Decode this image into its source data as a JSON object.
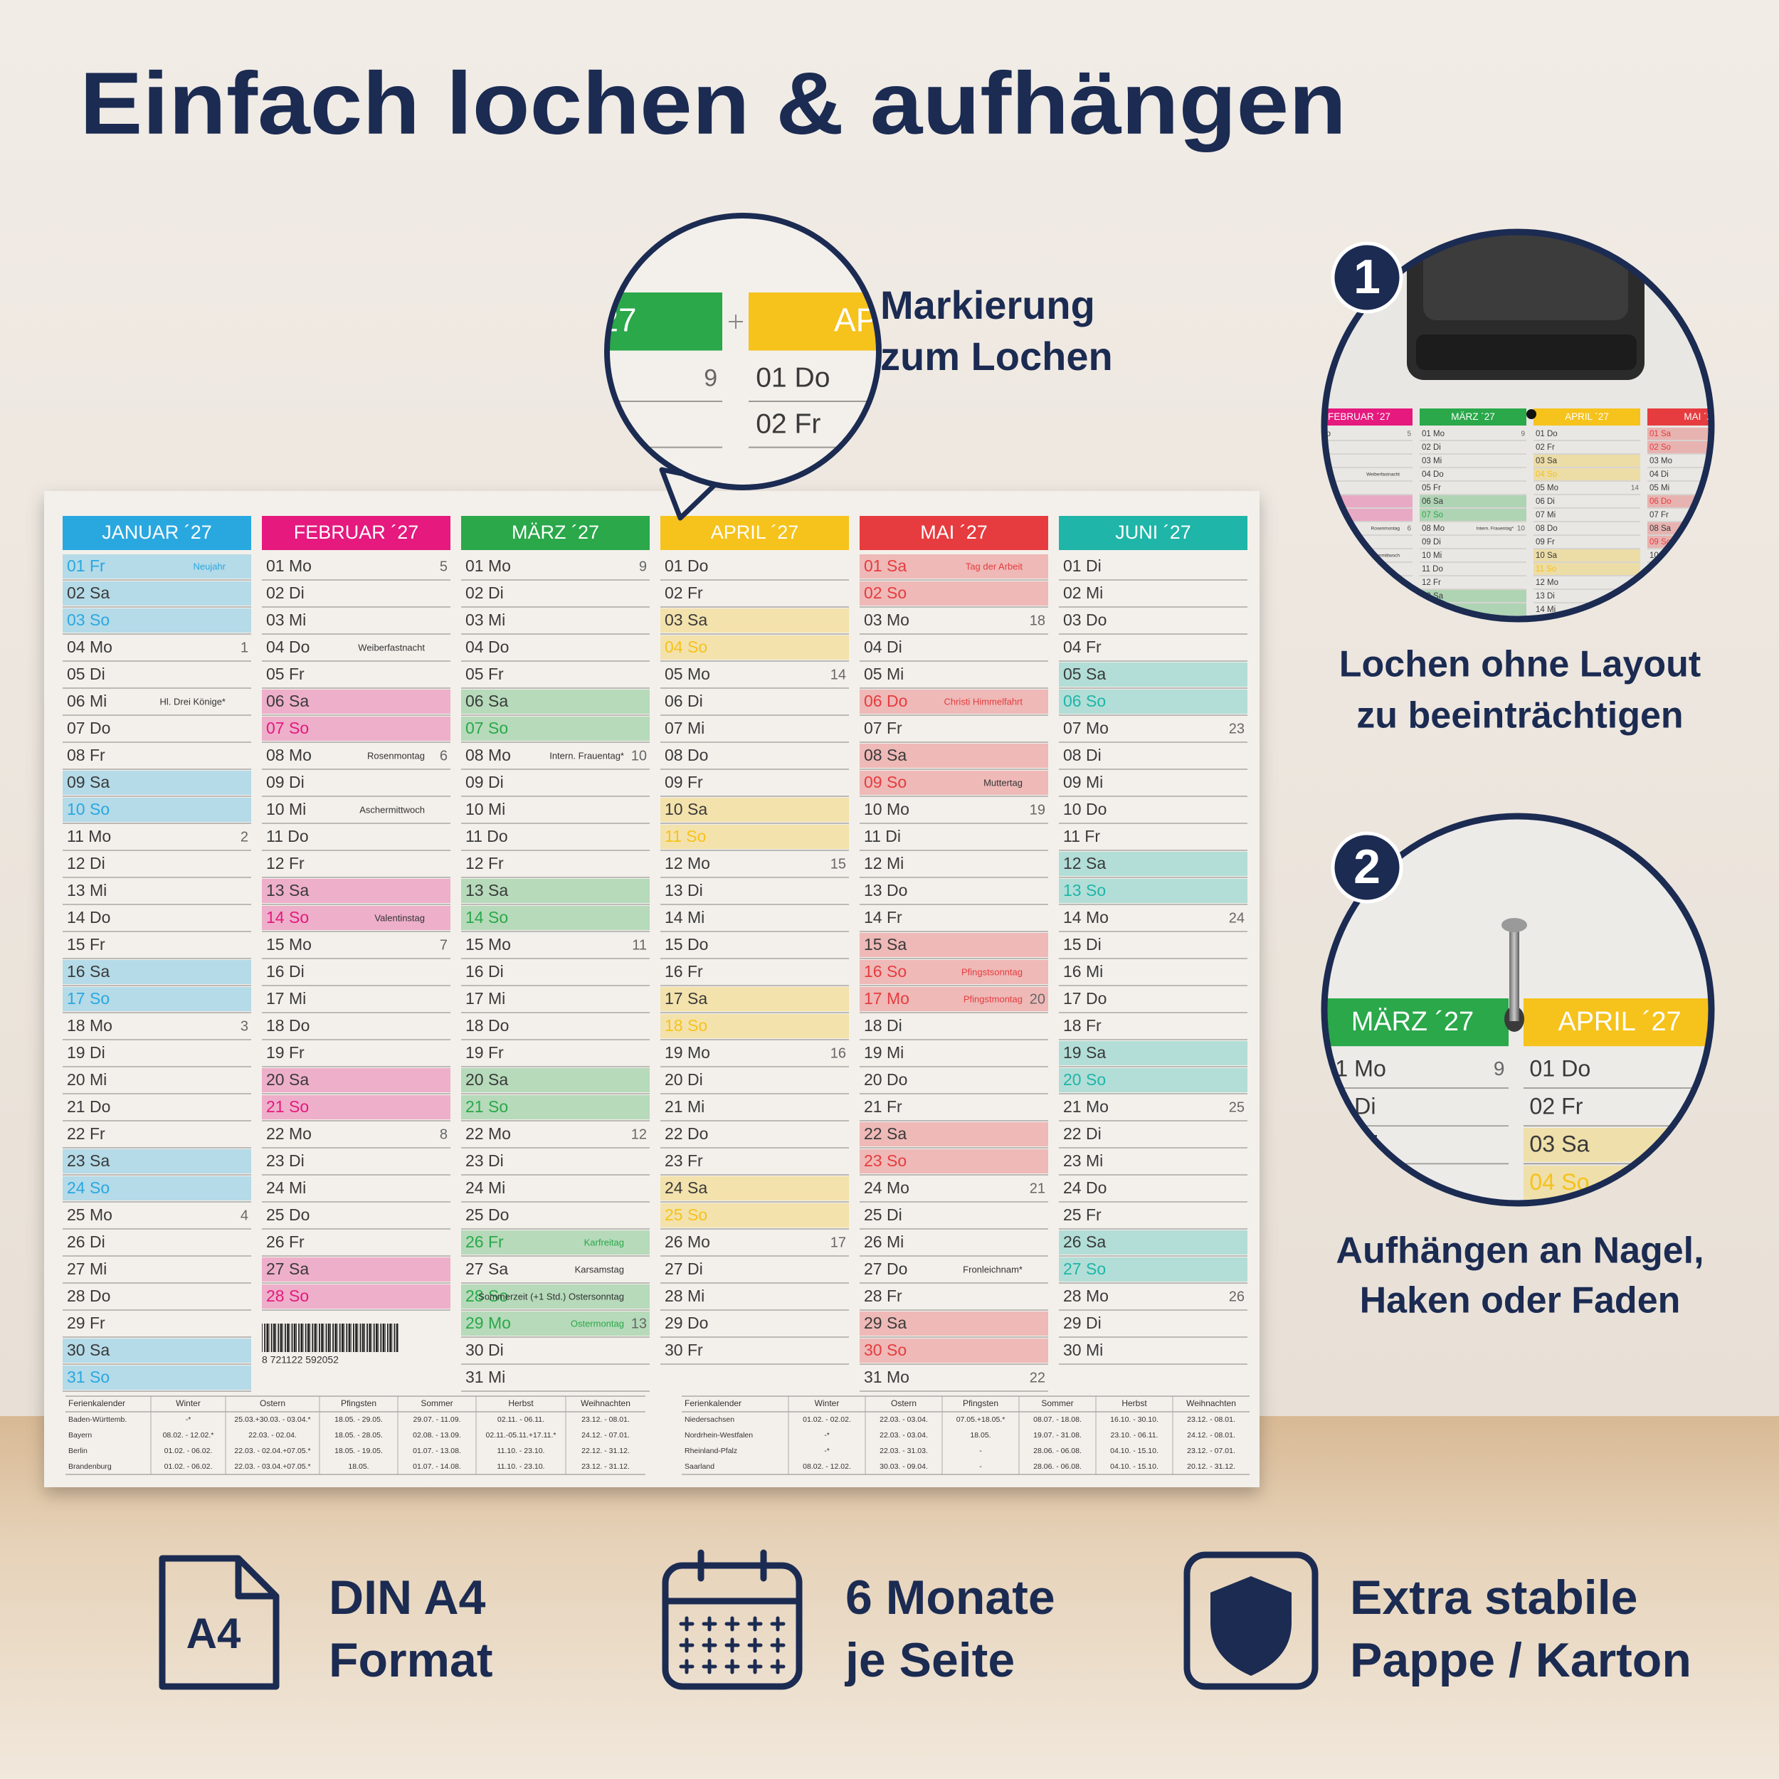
{
  "header": {
    "title": "Einfach lochen & aufhängen"
  },
  "callout": {
    "lines": [
      "Markierung",
      "zum Lochen"
    ]
  },
  "calendar": {
    "months": [
      {
        "name": "JANUAR ´27",
        "color": "#29a8e0",
        "days": [
          {
            "d": "01 Fr",
            "n": "Neujahr",
            "h": 3
          },
          {
            "d": "02 Sa",
            "h": 1
          },
          {
            "d": "03 So",
            "h": 2
          },
          {
            "d": "04 Mo",
            "w": 1
          },
          {
            "d": "05 Di"
          },
          {
            "d": "06 Mi",
            "n": "Hl. Drei Könige*"
          },
          {
            "d": "07 Do"
          },
          {
            "d": "08 Fr"
          },
          {
            "d": "09 Sa",
            "h": 1
          },
          {
            "d": "10 So",
            "h": 2
          },
          {
            "d": "11 Mo",
            "w": 2
          },
          {
            "d": "12 Di"
          },
          {
            "d": "13 Mi"
          },
          {
            "d": "14 Do"
          },
          {
            "d": "15 Fr"
          },
          {
            "d": "16 Sa",
            "h": 1
          },
          {
            "d": "17 So",
            "h": 2
          },
          {
            "d": "18 Mo",
            "w": 3
          },
          {
            "d": "19 Di"
          },
          {
            "d": "20 Mi"
          },
          {
            "d": "21 Do"
          },
          {
            "d": "22 Fr"
          },
          {
            "d": "23 Sa",
            "h": 1
          },
          {
            "d": "24 So",
            "h": 2
          },
          {
            "d": "25 Mo",
            "w": 4
          },
          {
            "d": "26 Di"
          },
          {
            "d": "27 Mi"
          },
          {
            "d": "28 Do"
          },
          {
            "d": "29 Fr"
          },
          {
            "d": "30 Sa",
            "h": 1
          },
          {
            "d": "31 So",
            "h": 2
          }
        ]
      },
      {
        "name": "FEBRUAR ´27",
        "color": "#e5197e",
        "days": [
          {
            "d": "01 Mo",
            "w": 5
          },
          {
            "d": "02 Di"
          },
          {
            "d": "03 Mi"
          },
          {
            "d": "04 Do",
            "n": "Weiberfastnacht"
          },
          {
            "d": "05 Fr"
          },
          {
            "d": "06 Sa",
            "h": 1
          },
          {
            "d": "07 So",
            "h": 2
          },
          {
            "d": "08 Mo",
            "n": "Rosenmontag",
            "w": 6
          },
          {
            "d": "09 Di"
          },
          {
            "d": "10 Mi",
            "n": "Aschermittwoch"
          },
          {
            "d": "11 Do"
          },
          {
            "d": "12 Fr"
          },
          {
            "d": "13 Sa",
            "h": 1
          },
          {
            "d": "14 So",
            "n": "Valentinstag",
            "h": 2
          },
          {
            "d": "15 Mo",
            "w": 7
          },
          {
            "d": "16 Di"
          },
          {
            "d": "17 Mi"
          },
          {
            "d": "18 Do"
          },
          {
            "d": "19 Fr"
          },
          {
            "d": "20 Sa",
            "h": 1
          },
          {
            "d": "21 So",
            "h": 2
          },
          {
            "d": "22 Mo",
            "w": 8
          },
          {
            "d": "23 Di"
          },
          {
            "d": "24 Mi"
          },
          {
            "d": "25 Do"
          },
          {
            "d": "26 Fr"
          },
          {
            "d": "27 Sa",
            "h": 1
          },
          {
            "d": "28 So",
            "h": 2
          }
        ]
      },
      {
        "name": "MÄRZ ´27",
        "color": "#2aa84a",
        "days": [
          {
            "d": "01 Mo",
            "w": 9
          },
          {
            "d": "02 Di"
          },
          {
            "d": "03 Mi"
          },
          {
            "d": "04 Do"
          },
          {
            "d": "05 Fr"
          },
          {
            "d": "06 Sa",
            "h": 1
          },
          {
            "d": "07 So",
            "h": 2
          },
          {
            "d": "08 Mo",
            "n": "Intern. Frauentag*",
            "w": 10
          },
          {
            "d": "09 Di"
          },
          {
            "d": "10 Mi"
          },
          {
            "d": "11 Do"
          },
          {
            "d": "12 Fr"
          },
          {
            "d": "13 Sa",
            "h": 1
          },
          {
            "d": "14 So",
            "h": 2
          },
          {
            "d": "15 Mo",
            "w": 11
          },
          {
            "d": "16 Di"
          },
          {
            "d": "17 Mi"
          },
          {
            "d": "18 Do"
          },
          {
            "d": "19 Fr"
          },
          {
            "d": "20 Sa",
            "h": 1
          },
          {
            "d": "21 So",
            "h": 2
          },
          {
            "d": "22 Mo",
            "w": 12
          },
          {
            "d": "23 Di"
          },
          {
            "d": "24 Mi"
          },
          {
            "d": "25 Do"
          },
          {
            "d": "26 Fr",
            "n": "Karfreitag",
            "h": 3
          },
          {
            "d": "27 Sa",
            "n": "Karsamstag"
          },
          {
            "d": "28 So",
            "n": "Sommerzeit (+1 Std.) Ostersonntag",
            "h": 2
          },
          {
            "d": "29 Mo",
            "n": "Ostermontag",
            "h": 3,
            "w": 13
          },
          {
            "d": "30 Di"
          },
          {
            "d": "31 Mi"
          }
        ]
      },
      {
        "name": "APRIL ´27",
        "color": "#f6c21c",
        "days": [
          {
            "d": "01 Do"
          },
          {
            "d": "02 Fr"
          },
          {
            "d": "03 Sa",
            "h": 1
          },
          {
            "d": "04 So",
            "h": 2
          },
          {
            "d": "05 Mo",
            "w": 14
          },
          {
            "d": "06 Di"
          },
          {
            "d": "07 Mi"
          },
          {
            "d": "08 Do"
          },
          {
            "d": "09 Fr"
          },
          {
            "d": "10 Sa",
            "h": 1
          },
          {
            "d": "11 So",
            "h": 2
          },
          {
            "d": "12 Mo",
            "w": 15
          },
          {
            "d": "13 Di"
          },
          {
            "d": "14 Mi"
          },
          {
            "d": "15 Do"
          },
          {
            "d": "16 Fr"
          },
          {
            "d": "17 Sa",
            "h": 1
          },
          {
            "d": "18 So",
            "h": 2
          },
          {
            "d": "19 Mo",
            "w": 16
          },
          {
            "d": "20 Di"
          },
          {
            "d": "21 Mi"
          },
          {
            "d": "22 Do"
          },
          {
            "d": "23 Fr"
          },
          {
            "d": "24 Sa",
            "h": 1
          },
          {
            "d": "25 So",
            "h": 2
          },
          {
            "d": "26 Mo",
            "w": 17
          },
          {
            "d": "27 Di"
          },
          {
            "d": "28 Mi"
          },
          {
            "d": "29 Do"
          },
          {
            "d": "30 Fr"
          }
        ]
      },
      {
        "name": "MAI ´27",
        "color": "#e63c3f",
        "days": [
          {
            "d": "01 Sa",
            "n": "Tag der Arbeit",
            "h": 3
          },
          {
            "d": "02 So",
            "h": 2
          },
          {
            "d": "03 Mo",
            "w": 18
          },
          {
            "d": "04 Di"
          },
          {
            "d": "05 Mi"
          },
          {
            "d": "06 Do",
            "n": "Christi Himmelfahrt",
            "h": 3
          },
          {
            "d": "07 Fr"
          },
          {
            "d": "08 Sa",
            "h": 1
          },
          {
            "d": "09 So",
            "n": "Muttertag",
            "h": 2
          },
          {
            "d": "10 Mo",
            "w": 19
          },
          {
            "d": "11 Di"
          },
          {
            "d": "12 Mi"
          },
          {
            "d": "13 Do"
          },
          {
            "d": "14 Fr"
          },
          {
            "d": "15 Sa",
            "h": 1
          },
          {
            "d": "16 So",
            "n": "Pfingstsonntag",
            "h": 3
          },
          {
            "d": "17 Mo",
            "n": "Pfingstmontag",
            "h": 3,
            "w": 20
          },
          {
            "d": "18 Di"
          },
          {
            "d": "19 Mi"
          },
          {
            "d": "20 Do"
          },
          {
            "d": "21 Fr"
          },
          {
            "d": "22 Sa",
            "h": 1
          },
          {
            "d": "23 So",
            "h": 2
          },
          {
            "d": "24 Mo",
            "w": 21
          },
          {
            "d": "25 Di"
          },
          {
            "d": "26 Mi"
          },
          {
            "d": "27 Do",
            "n": "Fronleichnam*"
          },
          {
            "d": "28 Fr"
          },
          {
            "d": "29 Sa",
            "h": 1
          },
          {
            "d": "30 So",
            "h": 2
          },
          {
            "d": "31 Mo",
            "w": 22
          }
        ]
      },
      {
        "name": "JUNI ´27",
        "color": "#1fb5a8",
        "days": [
          {
            "d": "01 Di"
          },
          {
            "d": "02 Mi"
          },
          {
            "d": "03 Do"
          },
          {
            "d": "04 Fr"
          },
          {
            "d": "05 Sa",
            "h": 1
          },
          {
            "d": "06 So",
            "h": 2
          },
          {
            "d": "07 Mo",
            "w": 23
          },
          {
            "d": "08 Di"
          },
          {
            "d": "09 Mi"
          },
          {
            "d": "10 Do"
          },
          {
            "d": "11 Fr"
          },
          {
            "d": "12 Sa",
            "h": 1
          },
          {
            "d": "13 So",
            "h": 2
          },
          {
            "d": "14 Mo",
            "w": 24
          },
          {
            "d": "15 Di"
          },
          {
            "d": "16 Mi"
          },
          {
            "d": "17 Do"
          },
          {
            "d": "18 Fr"
          },
          {
            "d": "19 Sa",
            "h": 1
          },
          {
            "d": "20 So",
            "h": 2
          },
          {
            "d": "21 Mo",
            "w": 25
          },
          {
            "d": "22 Di"
          },
          {
            "d": "23 Mi"
          },
          {
            "d": "24 Do"
          },
          {
            "d": "25 Fr"
          },
          {
            "d": "26 Sa",
            "h": 1
          },
          {
            "d": "27 So",
            "h": 2
          },
          {
            "d": "28 Mo",
            "w": 26
          },
          {
            "d": "29 Di"
          },
          {
            "d": "30 Mi"
          }
        ]
      }
    ],
    "barcode": "8 721122 592052",
    "holidays_left": {
      "columns": [
        "Ferienkalender",
        "Winter",
        "Ostern",
        "Pfingsten",
        "Sommer",
        "Herbst",
        "Weihnachten"
      ],
      "rows": [
        [
          "Baden-Württemb.",
          "-*",
          "25.03.+30.03. - 03.04.*",
          "18.05. - 29.05.",
          "29.07. - 11.09.",
          "02.11. - 06.11.",
          "23.12. - 08.01."
        ],
        [
          "Bayern",
          "08.02. - 12.02.*",
          "22.03. - 02.04.",
          "18.05. - 28.05.",
          "02.08. - 13.09.",
          "02.11.-05.11.+17.11.*",
          "24.12. - 07.01."
        ],
        [
          "Berlin",
          "01.02. - 06.02.",
          "22.03. - 02.04.+07.05.*",
          "18.05. - 19.05.",
          "01.07. - 13.08.",
          "11.10. - 23.10.",
          "22.12. - 31.12."
        ],
        [
          "Brandenburg",
          "01.02. - 06.02.",
          "22.03. - 03.04.+07.05.*",
          "18.05.",
          "01.07. - 14.08.",
          "11.10. - 23.10.",
          "23.12. - 31.12."
        ]
      ]
    },
    "holidays_right": {
      "columns": [
        "Ferienkalender",
        "Winter",
        "Ostern",
        "Pfingsten",
        "Sommer",
        "Herbst",
        "Weihnachten"
      ],
      "rows": [
        [
          "Niedersachsen",
          "01.02. - 02.02.",
          "22.03. - 03.04.",
          "07.05.+18.05.*",
          "08.07. - 18.08.",
          "16.10. - 30.10.",
          "23.12. - 08.01."
        ],
        [
          "Nordrhein-Westfalen",
          "-*",
          "22.03. - 03.04.",
          "18.05.",
          "19.07. - 31.08.",
          "23.10. - 06.11.",
          "24.12. - 08.01."
        ],
        [
          "Rheinland-Pfalz",
          "-*",
          "22.03. - 31.03.",
          "-",
          "28.06. - 06.08.",
          "04.10. - 15.10.",
          "23.12. - 07.01."
        ],
        [
          "Saarland",
          "08.02. - 12.02.",
          "30.03. - 09.04.",
          "-",
          "28.06. - 06.08.",
          "04.10. - 15.10.",
          "20.12. - 31.12."
        ]
      ]
    }
  },
  "steps": [
    {
      "number": "1",
      "lines": [
        "Lochen ohne Layout",
        "zu beeinträchtigen"
      ]
    },
    {
      "number": "2",
      "lines": [
        "Aufhängen an Nagel,",
        "Haken oder Faden"
      ]
    }
  ],
  "features": [
    {
      "icon_label": "A4",
      "lines": [
        "DIN A4",
        "Format"
      ]
    },
    {
      "lines": [
        "6 Monate",
        "je Seite"
      ]
    },
    {
      "lines": [
        "Extra stabile",
        "Pappe / Karton"
      ]
    }
  ]
}
